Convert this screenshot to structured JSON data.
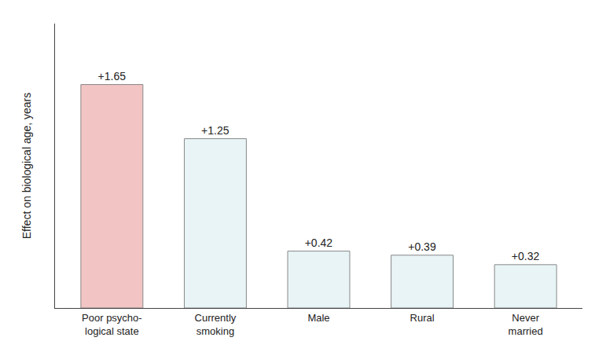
{
  "chart_data": {
    "type": "bar",
    "categories": [
      "Poor psycho-\nlogical state",
      "Currently\nsmoking",
      "Male",
      "Rural",
      "Never\nmarried"
    ],
    "values": [
      1.65,
      1.25,
      0.42,
      0.39,
      0.32
    ],
    "value_labels": [
      "+1.65",
      "+1.25",
      "+0.42",
      "+0.39",
      "+0.32"
    ],
    "data_labels": true,
    "colors": [
      "#f2c4c4",
      "#e8f4f5",
      "#e8f4f5",
      "#e8f4f5",
      "#e8f4f5"
    ],
    "ylabel": "Effect on biological age, years",
    "ylim": [
      0,
      2.1
    ],
    "grid": false,
    "tick_labels": "x"
  }
}
